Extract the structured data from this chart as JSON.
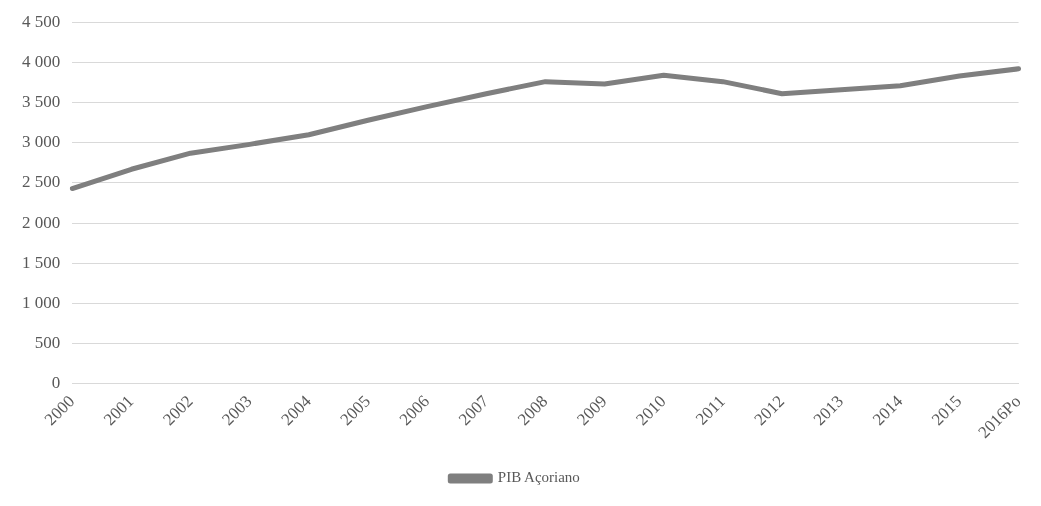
{
  "chart_data": {
    "type": "line",
    "categories": [
      "2000",
      "2001",
      "2002",
      "2003",
      "2004",
      "2005",
      "2006",
      "2007",
      "2008",
      "2009",
      "2010",
      "2011",
      "2012",
      "2013",
      "2014",
      "2015",
      "2016Po"
    ],
    "series": [
      {
        "name": "PIB Açoriano",
        "color": "#7f7f7f",
        "values": [
          2430,
          2670,
          2870,
          2980,
          3100,
          3280,
          3450,
          3610,
          3760,
          3730,
          3840,
          3760,
          3610,
          3660,
          3710,
          3830,
          3920
        ]
      }
    ],
    "ylim": [
      0,
      4500
    ],
    "yticks": [
      0,
      500,
      {
        "value": 1000,
        "label": "1 000"
      },
      {
        "value": 1500,
        "label": "1 500"
      },
      {
        "value": 2000,
        "label": "2 000"
      },
      {
        "value": 2500,
        "label": "2 500"
      },
      {
        "value": 3000,
        "label": "3 000"
      },
      {
        "value": 3500,
        "label": "3 500"
      },
      {
        "value": 4000,
        "label": "4 000"
      },
      {
        "value": 4500,
        "label": "4 500"
      }
    ],
    "grid": "y",
    "legend": "bottom",
    "marker": "none",
    "line_style": "solid"
  }
}
